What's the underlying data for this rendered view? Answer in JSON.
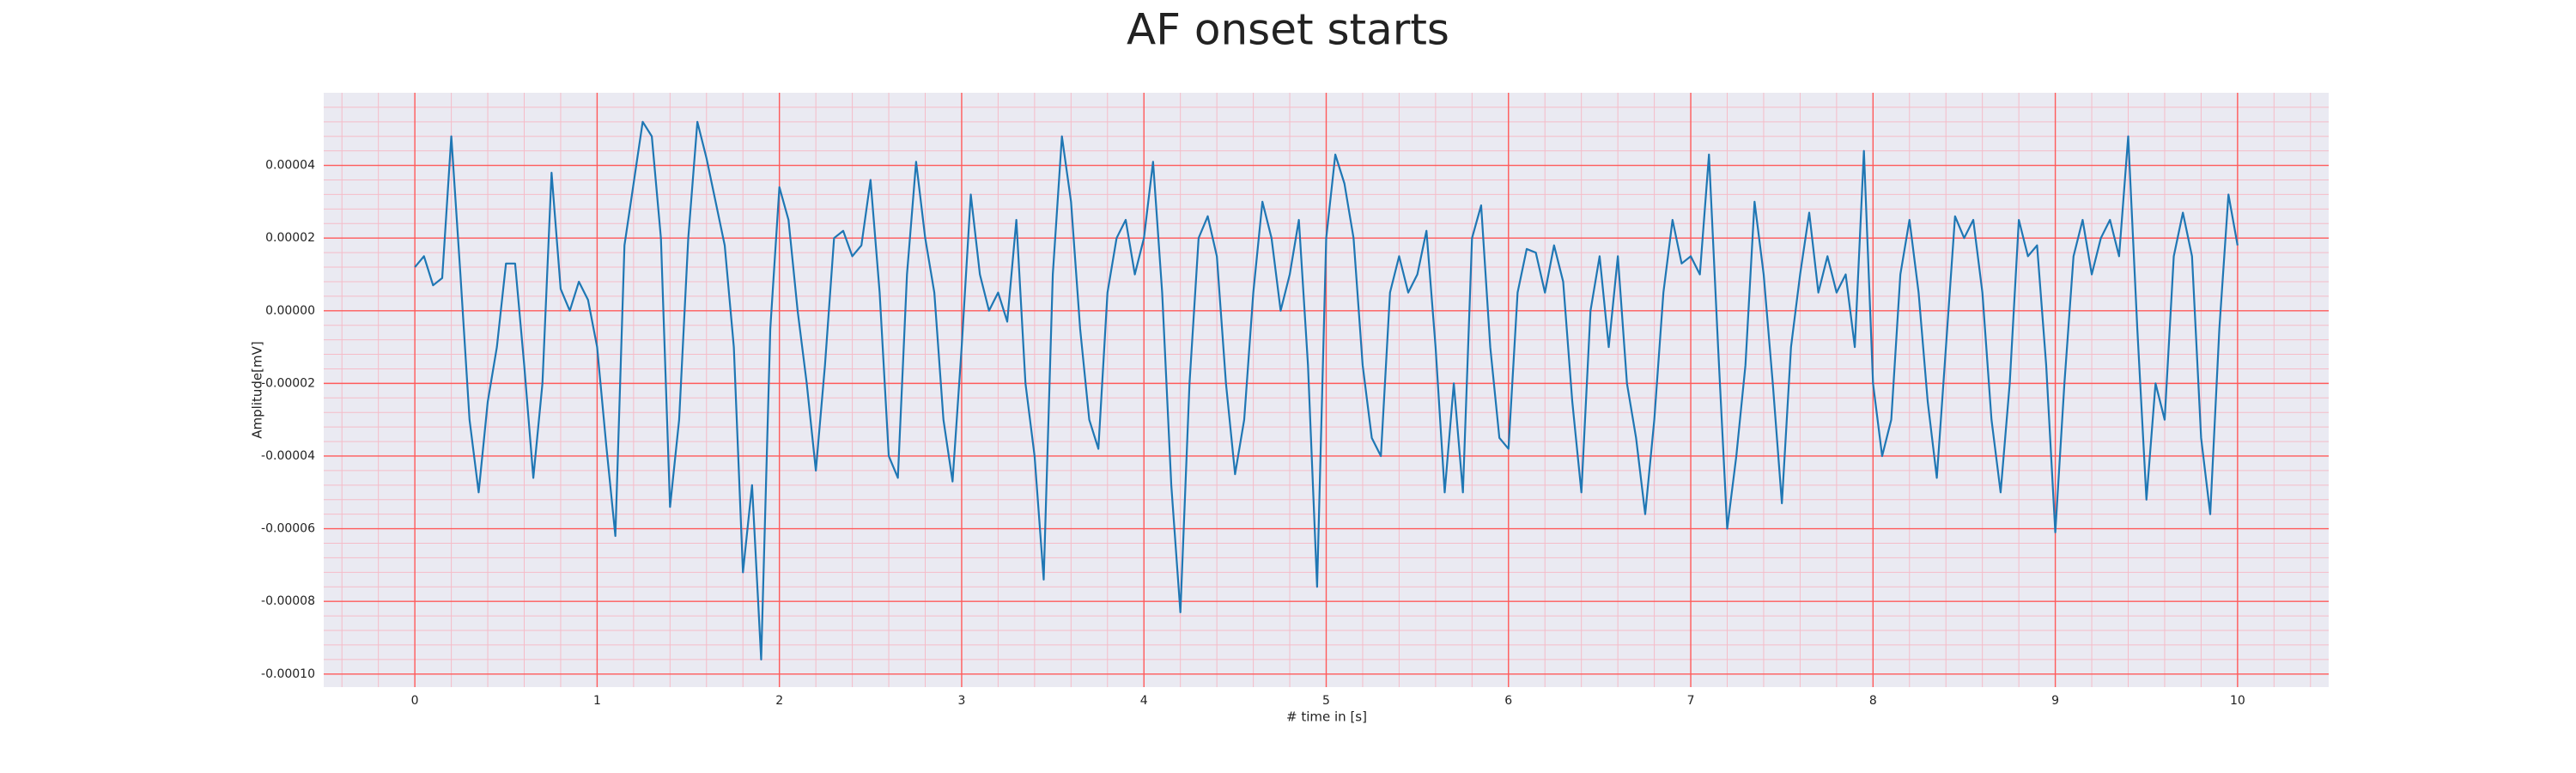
{
  "chart_data": {
    "type": "line",
    "title": "AF onset starts",
    "x_label": "# time in [s]",
    "y_label": "Amplitude[mV]",
    "xlim": [
      -0.5,
      10.5
    ],
    "ylim": [
      -0.0001036,
      6e-05
    ],
    "xticks": [
      0,
      1,
      2,
      3,
      4,
      5,
      6,
      7,
      8,
      9,
      10
    ],
    "yticks": [
      {
        "value": -0.0001,
        "label": "-0.00010"
      },
      {
        "value": -8e-05,
        "label": "-0.00008"
      },
      {
        "value": -6e-05,
        "label": "-0.00006"
      },
      {
        "value": -4e-05,
        "label": "-0.00004"
      },
      {
        "value": -2e-05,
        "label": "-0.00002"
      },
      {
        "value": 0,
        "label": "0.00000"
      },
      {
        "value": 2e-05,
        "label": "0.00002"
      },
      {
        "value": 4e-05,
        "label": "0.00004"
      }
    ],
    "grid": true,
    "grid_color": "#ff5a5a",
    "minor_grid": true,
    "minor_divisions": 5,
    "minor_grid_color": "#f5bcc8",
    "background": "#eaeaf2",
    "x": [
      0,
      0.05,
      0.1,
      0.15,
      0.2,
      0.25,
      0.3,
      0.35,
      0.4,
      0.45,
      0.5,
      0.55,
      0.6,
      0.65,
      0.7,
      0.75,
      0.8,
      0.85,
      0.9,
      0.95,
      1,
      1.05,
      1.1,
      1.15,
      1.2,
      1.25,
      1.3,
      1.35,
      1.4,
      1.45,
      1.5,
      1.55,
      1.6,
      1.65,
      1.7,
      1.75,
      1.8,
      1.85,
      1.9,
      1.95,
      2,
      2.05,
      2.1,
      2.15,
      2.2,
      2.25,
      2.3,
      2.35,
      2.4,
      2.45,
      2.5,
      2.55,
      2.6,
      2.65,
      2.7,
      2.75,
      2.8,
      2.85,
      2.9,
      2.95,
      3,
      3.05,
      3.1,
      3.15,
      3.2,
      3.25,
      3.3,
      3.35,
      3.4,
      3.45,
      3.5,
      3.55,
      3.6,
      3.65,
      3.7,
      3.75,
      3.8,
      3.85,
      3.9,
      3.95,
      4,
      4.05,
      4.1,
      4.15,
      4.2,
      4.25,
      4.3,
      4.35,
      4.4,
      4.45,
      4.5,
      4.55,
      4.6,
      4.65,
      4.7,
      4.75,
      4.8,
      4.85,
      4.9,
      4.95,
      5,
      5.05,
      5.1,
      5.15,
      5.2,
      5.25,
      5.3,
      5.35,
      5.4,
      5.45,
      5.5,
      5.55,
      5.6,
      5.65,
      5.7,
      5.75,
      5.8,
      5.85,
      5.9,
      5.95,
      6,
      6.05,
      6.1,
      6.15,
      6.2,
      6.25,
      6.3,
      6.35,
      6.4,
      6.45,
      6.5,
      6.55,
      6.6,
      6.65,
      6.7,
      6.75,
      6.8,
      6.85,
      6.9,
      6.95,
      7,
      7.05,
      7.1,
      7.15,
      7.2,
      7.25,
      7.3,
      7.35,
      7.4,
      7.45,
      7.5,
      7.55,
      7.6,
      7.65,
      7.7,
      7.75,
      7.8,
      7.85,
      7.9,
      7.95,
      8,
      8.05,
      8.1,
      8.15,
      8.2,
      8.25,
      8.3,
      8.35,
      8.4,
      8.45,
      8.5,
      8.55,
      8.6,
      8.65,
      8.7,
      8.75,
      8.8,
      8.85,
      8.9,
      8.95,
      9,
      9.05,
      9.1,
      9.15,
      9.2,
      9.25,
      9.3,
      9.35,
      9.4,
      9.45,
      9.5,
      9.55,
      9.6,
      9.65,
      9.7,
      9.75,
      9.8,
      9.85,
      9.9,
      9.95,
      10
    ],
    "series": [
      {
        "color": "#1f77b4",
        "values": [
          1.2e-05,
          1.5e-05,
          7e-06,
          9e-06,
          4.8e-05,
          1e-05,
          -3e-05,
          -5e-05,
          -2.5e-05,
          -1e-05,
          1.3e-05,
          1.3e-05,
          -1.5e-05,
          -4.6e-05,
          -2e-05,
          3.8e-05,
          6e-06,
          0,
          8e-06,
          3e-06,
          -1e-05,
          -3.7e-05,
          -6.2e-05,
          1.8e-05,
          3.5e-05,
          5.2e-05,
          4.8e-05,
          2e-05,
          -5.4e-05,
          -3e-05,
          2e-05,
          5.2e-05,
          4.2e-05,
          3e-05,
          1.8e-05,
          -1e-05,
          -7.2e-05,
          -4.8e-05,
          -9.6e-05,
          -5e-06,
          3.4e-05,
          2.5e-05,
          0,
          -2e-05,
          -4.4e-05,
          -1.5e-05,
          2e-05,
          2.2e-05,
          1.5e-05,
          1.8e-05,
          3.6e-05,
          5e-06,
          -4e-05,
          -4.6e-05,
          1e-05,
          4.1e-05,
          2e-05,
          5e-06,
          -3e-05,
          -4.7e-05,
          -1e-05,
          3.2e-05,
          1e-05,
          0,
          5e-06,
          -3e-06,
          2.5e-05,
          -2e-05,
          -4e-05,
          -7.4e-05,
          1e-05,
          4.8e-05,
          3e-05,
          -5e-06,
          -3e-05,
          -3.8e-05,
          5e-06,
          2e-05,
          2.5e-05,
          1e-05,
          2e-05,
          4.1e-05,
          5e-06,
          -4.8e-05,
          -8.3e-05,
          -2e-05,
          2e-05,
          2.6e-05,
          1.5e-05,
          -2e-05,
          -4.5e-05,
          -3e-05,
          5e-06,
          3e-05,
          2e-05,
          0,
          1e-05,
          2.5e-05,
          -1.5e-05,
          -7.6e-05,
          2e-05,
          4.3e-05,
          3.5e-05,
          2e-05,
          -1.5e-05,
          -3.5e-05,
          -4e-05,
          5e-06,
          1.5e-05,
          5e-06,
          1e-05,
          2.2e-05,
          -1e-05,
          -5e-05,
          -2e-05,
          -5e-05,
          2e-05,
          2.9e-05,
          -1e-05,
          -3.5e-05,
          -3.8e-05,
          5e-06,
          1.7e-05,
          1.6e-05,
          5e-06,
          1.8e-05,
          8e-06,
          -2.5e-05,
          -5e-05,
          0,
          1.5e-05,
          -1e-05,
          1.5e-05,
          -2e-05,
          -3.5e-05,
          -5.6e-05,
          -3e-05,
          5e-06,
          2.5e-05,
          1.3e-05,
          1.5e-05,
          1e-05,
          4.3e-05,
          -1e-05,
          -6e-05,
          -4e-05,
          -1.5e-05,
          3e-05,
          1e-05,
          -2e-05,
          -5.3e-05,
          -1e-05,
          1e-05,
          2.7e-05,
          5e-06,
          1.5e-05,
          5e-06,
          1e-05,
          -1e-05,
          4.4e-05,
          -2e-05,
          -4e-05,
          -3e-05,
          1e-05,
          2.5e-05,
          5e-06,
          -2.5e-05,
          -4.6e-05,
          -1e-05,
          2.6e-05,
          2e-05,
          2.5e-05,
          5e-06,
          -3e-05,
          -5e-05,
          -2e-05,
          2.5e-05,
          1.5e-05,
          1.8e-05,
          -1.5e-05,
          -6.1e-05,
          -2e-05,
          1.5e-05,
          2.5e-05,
          1e-05,
          2e-05,
          2.5e-05,
          1.5e-05,
          4.8e-05,
          -5e-06,
          -5.2e-05,
          -2e-05,
          -3e-05,
          1.5e-05,
          2.7e-05,
          1.5e-05,
          -3.5e-05,
          -5.6e-05,
          -5e-06,
          3.2e-05,
          1.8e-05
        ]
      }
    ]
  }
}
